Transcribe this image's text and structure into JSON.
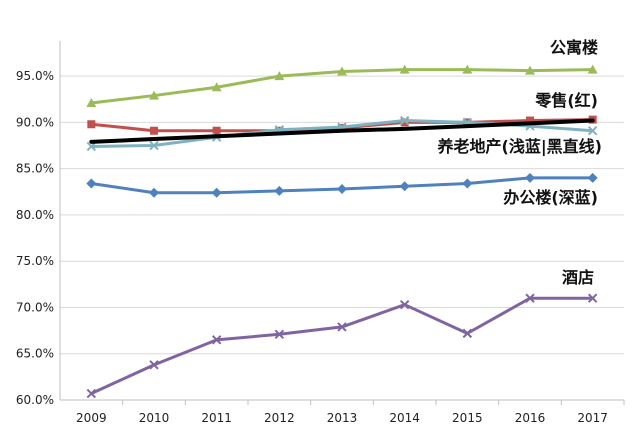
{
  "chart_data": {
    "type": "line",
    "x": [
      "2009",
      "2010",
      "2011",
      "2012",
      "2013",
      "2014",
      "2015",
      "2016",
      "2017"
    ],
    "ylim": [
      60,
      97.5
    ],
    "yticks": [
      60,
      65,
      70,
      75,
      80,
      85,
      90,
      95
    ],
    "ytick_labels": [
      "60.0%",
      "65.0%",
      "70.0%",
      "75.0%",
      "80.0%",
      "85.0%",
      "90.0%",
      "95.0%"
    ],
    "grid": true,
    "legend": "none",
    "series": [
      {
        "name": "公寓楼",
        "values": [
          92.1,
          92.9,
          93.8,
          95.0,
          95.5,
          95.7,
          95.7,
          95.6,
          95.7
        ],
        "color": "#9bbb59",
        "marker": "triangle"
      },
      {
        "name": "零售(红)",
        "values": [
          89.8,
          89.1,
          89.1,
          89.1,
          89.4,
          90.0,
          90.0,
          90.2,
          90.3
        ],
        "color": "#c0504d",
        "marker": "square"
      },
      {
        "name": "养老地产(浅蓝)",
        "values": [
          87.4,
          87.5,
          88.4,
          89.2,
          89.5,
          90.2,
          90.0,
          89.6,
          89.1
        ],
        "color": "#7fb2c0",
        "marker": "x"
      },
      {
        "name": "黑直线",
        "values": [
          87.9,
          88.2,
          88.5,
          88.8,
          89.1,
          89.3,
          89.6,
          89.9,
          90.2
        ],
        "color": "#000000",
        "marker": "none",
        "width": 4
      },
      {
        "name": "办公楼(深蓝)",
        "values": [
          83.4,
          82.4,
          82.4,
          82.6,
          82.8,
          83.1,
          83.4,
          84.0,
          84.0
        ],
        "color": "#4f81bd",
        "marker": "diamond"
      },
      {
        "name": "酒店",
        "values": [
          60.7,
          63.8,
          66.5,
          67.1,
          67.9,
          70.3,
          67.2,
          71.0,
          71.0
        ],
        "color": "#8064a2",
        "marker": "x"
      }
    ],
    "annotations": [
      "公寓楼",
      "零售(红)",
      "养老地产(浅蓝|黑直线)",
      "办公楼(深蓝)",
      "酒店"
    ]
  }
}
